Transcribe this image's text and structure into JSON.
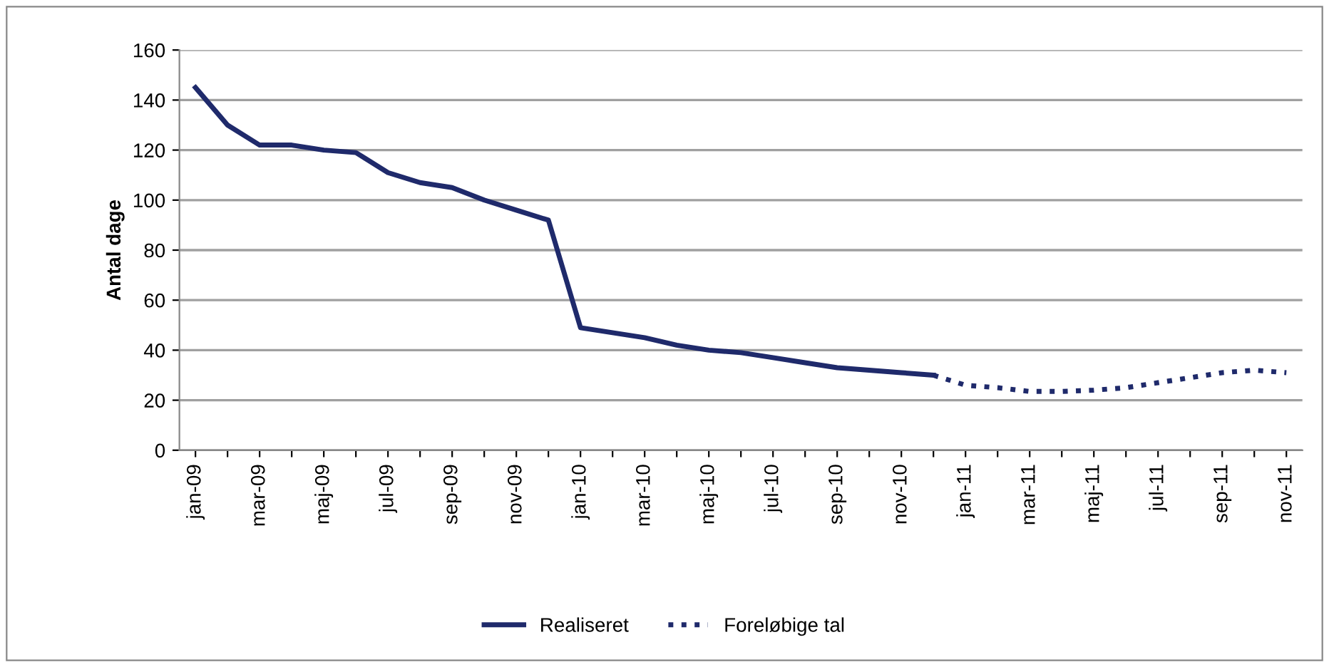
{
  "chart_data": {
    "type": "line",
    "ylabel": "Antal dage",
    "categories": [
      "jan-09",
      null,
      "mar-09",
      null,
      "maj-09",
      null,
      "jul-09",
      null,
      "sep-09",
      null,
      "nov-09",
      null,
      "jan-10",
      null,
      "mar-10",
      null,
      "maj-10",
      null,
      "jul-10",
      null,
      "sep-10",
      null,
      "nov-10",
      null,
      "jan-11",
      null,
      "mar-11",
      null,
      "maj-11",
      null,
      "jul-11",
      null,
      "sep-11",
      null,
      "nov-11"
    ],
    "series": [
      {
        "name": "Realiseret",
        "color": "#1f2a6b",
        "line_style": "solid",
        "values": [
          145,
          130,
          122,
          122,
          120,
          119,
          111,
          107,
          105,
          100,
          96,
          92,
          49,
          47,
          45,
          42,
          40,
          39,
          37,
          35,
          33,
          32,
          31,
          30,
          null,
          null,
          null,
          null,
          null,
          null,
          null,
          null,
          null,
          null,
          null
        ]
      },
      {
        "name": "Foreløbige tal",
        "color": "#1f2a6b",
        "line_style": "dotted",
        "values": [
          null,
          null,
          null,
          null,
          null,
          null,
          null,
          null,
          null,
          null,
          null,
          null,
          null,
          null,
          null,
          null,
          null,
          null,
          null,
          null,
          null,
          null,
          null,
          30,
          26,
          25,
          23.5,
          23.5,
          24,
          25,
          27,
          29,
          31,
          32,
          31
        ]
      }
    ],
    "ylim": [
      0,
      160
    ],
    "yticks": [
      0,
      20,
      40,
      60,
      80,
      100,
      120,
      140,
      160
    ],
    "grid": "y",
    "legend": "bottom",
    "marker": "none"
  }
}
